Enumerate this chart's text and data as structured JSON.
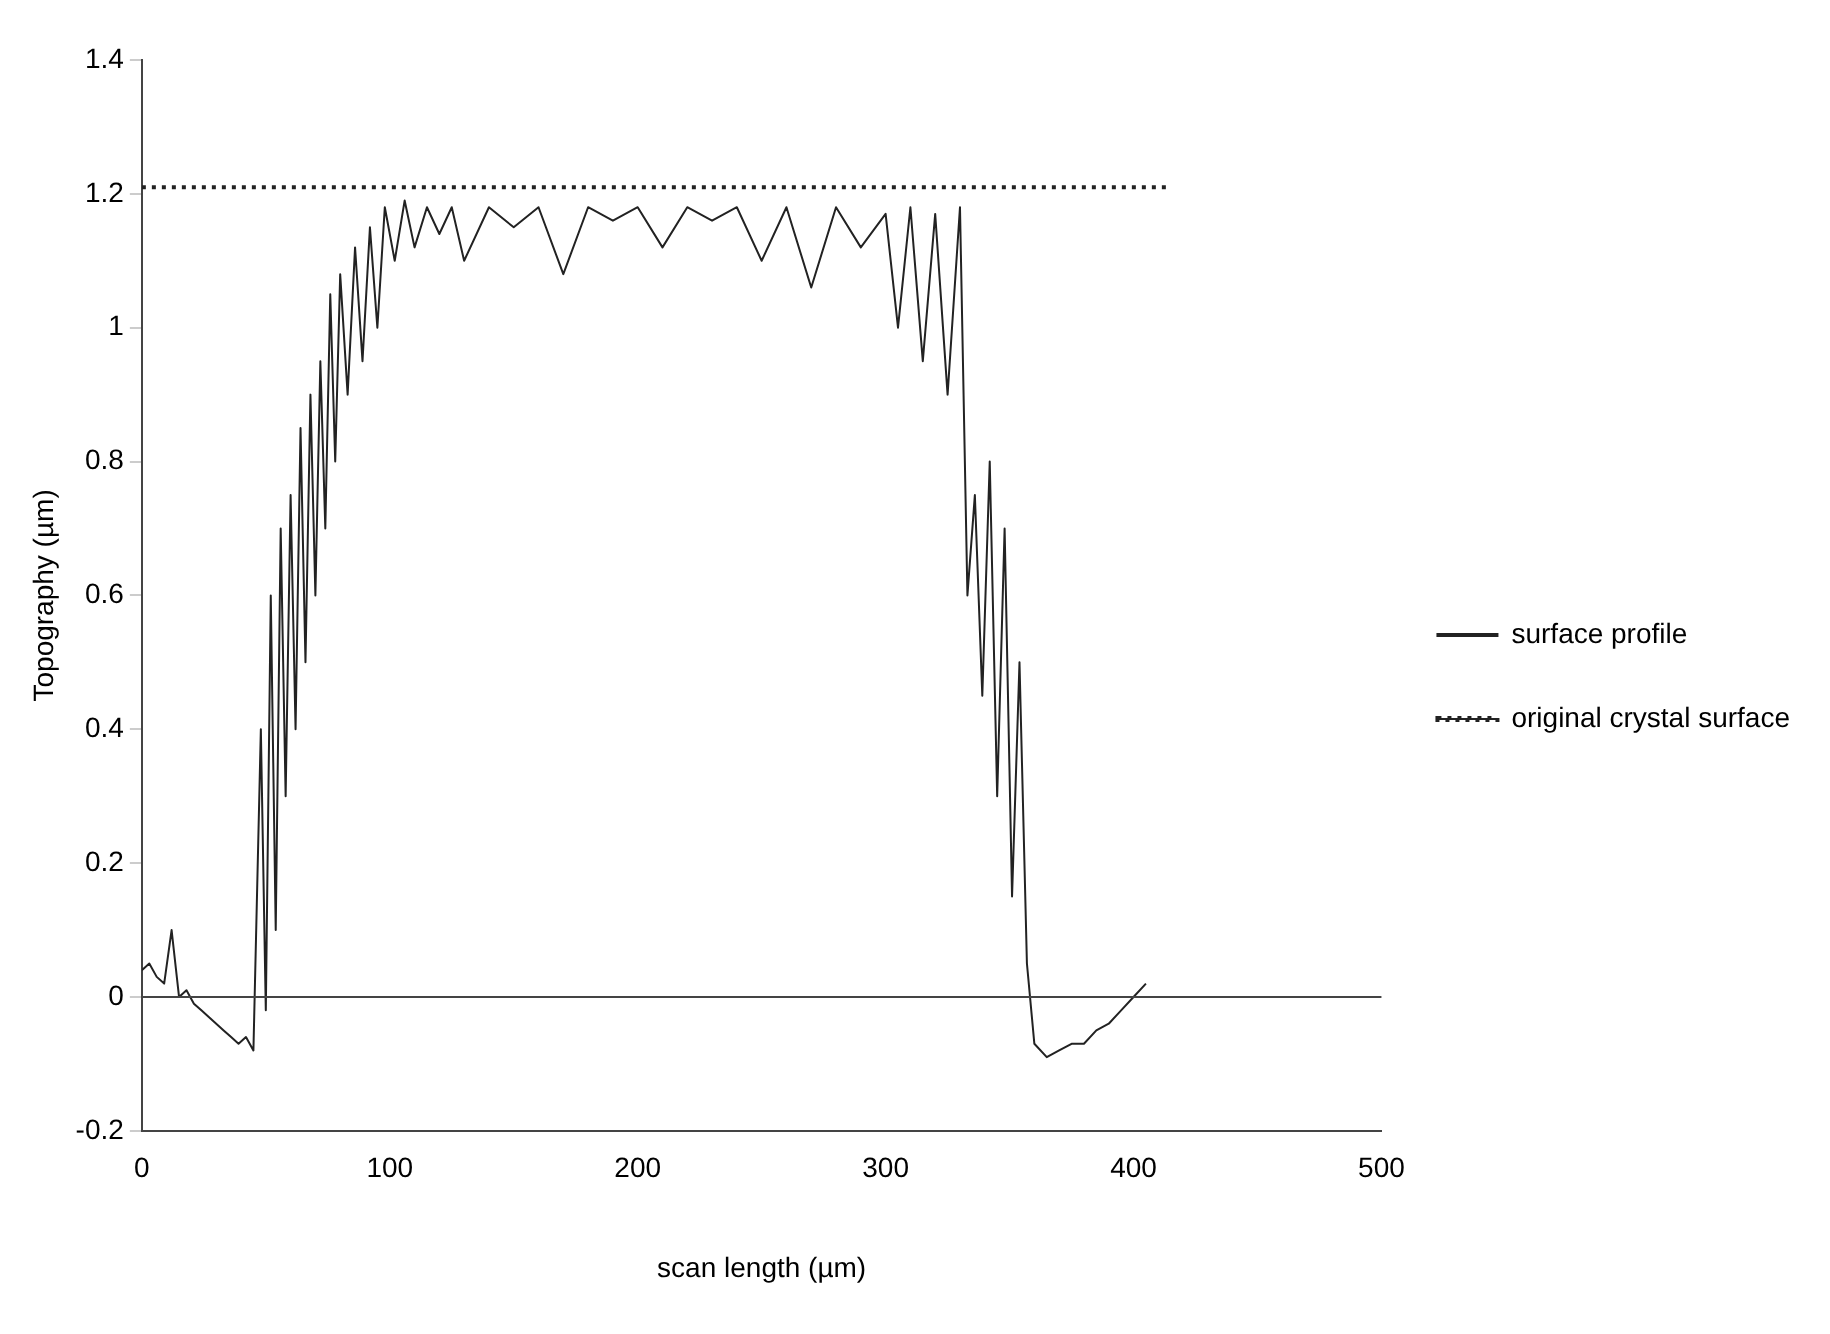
{
  "chart_data": {
    "type": "line",
    "xlabel": "scan length (µm)",
    "ylabel": "Topography (µm)",
    "xlim": [
      0,
      500
    ],
    "xticks": [
      0,
      100,
      200,
      300,
      400,
      500
    ],
    "ylim": [
      -0.2,
      1.4
    ],
    "yticks": [
      -0.2,
      0,
      0.2,
      0.4,
      0.6,
      0.8,
      1,
      1.2,
      1.4
    ],
    "grid": false,
    "legend": "right",
    "marker": "none",
    "ref_lines": [
      {
        "axis": "y",
        "value": 0
      }
    ],
    "series": [
      {
        "name": "surface profile",
        "color": "#222222",
        "line_style": "solid",
        "x": [
          0,
          3,
          6,
          9,
          12,
          15,
          18,
          21,
          24,
          27,
          30,
          33,
          36,
          39,
          42,
          45,
          48,
          50,
          52,
          54,
          56,
          58,
          60,
          62,
          64,
          66,
          68,
          70,
          72,
          74,
          76,
          78,
          80,
          83,
          86,
          89,
          92,
          95,
          98,
          102,
          106,
          110,
          115,
          120,
          125,
          130,
          140,
          150,
          160,
          170,
          180,
          190,
          200,
          210,
          220,
          230,
          240,
          250,
          260,
          270,
          280,
          290,
          300,
          305,
          310,
          315,
          320,
          325,
          330,
          333,
          336,
          339,
          342,
          345,
          348,
          351,
          354,
          357,
          360,
          365,
          370,
          375,
          380,
          385,
          390,
          395,
          400,
          405
        ],
        "values": [
          0.04,
          0.05,
          0.03,
          0.02,
          0.1,
          0,
          0.01,
          -0.01,
          -0.02,
          -0.03,
          -0.04,
          -0.05,
          -0.06,
          -0.07,
          -0.06,
          -0.08,
          0.4,
          -0.02,
          0.6,
          0.1,
          0.7,
          0.3,
          0.75,
          0.4,
          0.85,
          0.5,
          0.9,
          0.6,
          0.95,
          0.7,
          1.05,
          0.8,
          1.08,
          0.9,
          1.12,
          0.95,
          1.15,
          1.0,
          1.18,
          1.1,
          1.19,
          1.12,
          1.18,
          1.14,
          1.18,
          1.1,
          1.18,
          1.15,
          1.18,
          1.08,
          1.18,
          1.16,
          1.18,
          1.12,
          1.18,
          1.16,
          1.18,
          1.1,
          1.18,
          1.06,
          1.18,
          1.12,
          1.17,
          1.0,
          1.18,
          0.95,
          1.17,
          0.9,
          1.18,
          0.6,
          0.75,
          0.45,
          0.8,
          0.3,
          0.7,
          0.15,
          0.5,
          0.05,
          -0.07,
          -0.09,
          -0.08,
          -0.07,
          -0.07,
          -0.05,
          -0.04,
          -0.02,
          0,
          0.02
        ]
      },
      {
        "name": "original crystal surface",
        "color": "#222222",
        "line_style": "dotted",
        "x": [
          0,
          415
        ],
        "values": [
          1.21,
          1.21
        ]
      }
    ]
  }
}
